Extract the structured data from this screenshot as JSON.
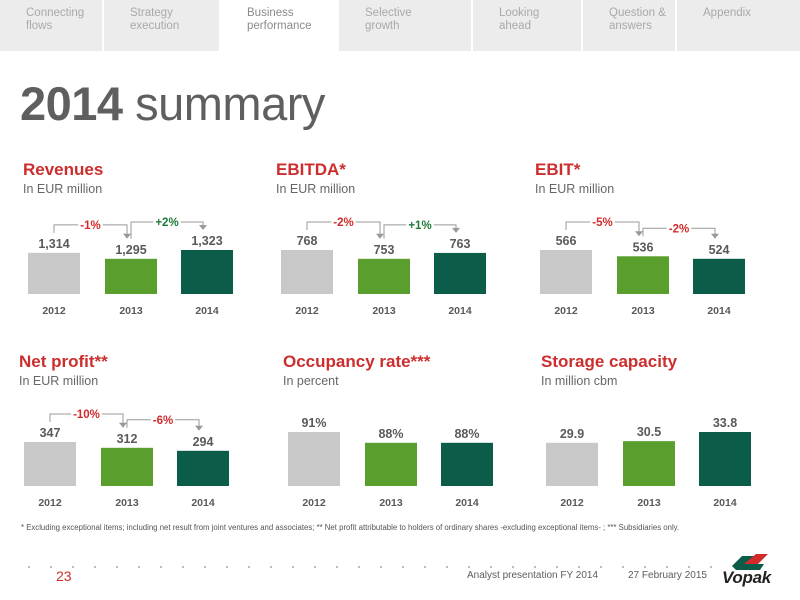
{
  "nav": {
    "tabs": [
      {
        "label": "Connecting\nflows",
        "active": false
      },
      {
        "label": "Strategy\nexecution",
        "active": false
      },
      {
        "label": "Business\nperformance",
        "active": true
      },
      {
        "label": "Selective\ngrowth",
        "active": false
      },
      {
        "label": "Looking\nahead",
        "active": false
      },
      {
        "label": "Question &\nanswers",
        "active": false
      },
      {
        "label": "Appendix",
        "active": false
      }
    ]
  },
  "page": {
    "title_year": "2014",
    "title_rest": "summary"
  },
  "colors": {
    "bar_2012": "#c8c8c8",
    "bar_2013": "#5a9e2e",
    "bar_2014": "#0b5c48",
    "decrease": "#d12b2b",
    "increase": "#1e7a36",
    "title_red": "#cc2e2e"
  },
  "chart_data": [
    {
      "type": "bar",
      "title": "Revenues",
      "subtitle": "In EUR million",
      "categories": [
        "2012",
        "2013",
        "2014"
      ],
      "values": [
        1314,
        1295,
        1323
      ],
      "value_labels": [
        "1,314",
        "1,295",
        "1,323"
      ],
      "changes": [
        "-1%",
        "+2%"
      ]
    },
    {
      "type": "bar",
      "title": "EBITDA*",
      "subtitle": "In EUR million",
      "categories": [
        "2012",
        "2013",
        "2014"
      ],
      "values": [
        768,
        753,
        763
      ],
      "value_labels": [
        "768",
        "753",
        "763"
      ],
      "changes": [
        "-2%",
        "+1%"
      ]
    },
    {
      "type": "bar",
      "title": "EBIT*",
      "subtitle": "In EUR million",
      "categories": [
        "2012",
        "2013",
        "2014"
      ],
      "values": [
        566,
        536,
        524
      ],
      "value_labels": [
        "566",
        "536",
        "524"
      ],
      "changes": [
        "-5%",
        "-2%"
      ]
    },
    {
      "type": "bar",
      "title": "Net profit**",
      "subtitle": "In EUR million",
      "categories": [
        "2012",
        "2013",
        "2014"
      ],
      "values": [
        347,
        312,
        294
      ],
      "value_labels": [
        "347",
        "312",
        "294"
      ],
      "changes": [
        "-10%",
        "-6%"
      ]
    },
    {
      "type": "bar",
      "title": "Occupancy rate***",
      "subtitle": "In percent",
      "categories": [
        "2012",
        "2013",
        "2014"
      ],
      "values": [
        91,
        88,
        88
      ],
      "value_labels": [
        "91%",
        "88%",
        "88%"
      ],
      "changes": []
    },
    {
      "type": "bar",
      "title": "Storage capacity",
      "subtitle": "In million cbm",
      "categories": [
        "2012",
        "2013",
        "2014"
      ],
      "values": [
        29.9,
        30.5,
        33.8
      ],
      "value_labels": [
        "29.9",
        "30.5",
        "33.8"
      ],
      "changes": []
    }
  ],
  "footnote": "* Excluding exceptional items; including net result from joint ventures and associates; ** Net profit attributable to holders of ordinary shares -excluding exceptional items- ; *** Subsidiaries only.",
  "footer": {
    "page_number": "23",
    "presentation": "Analyst presentation FY 2014",
    "date": "27 February 2015",
    "logo_text": "Vopak"
  }
}
